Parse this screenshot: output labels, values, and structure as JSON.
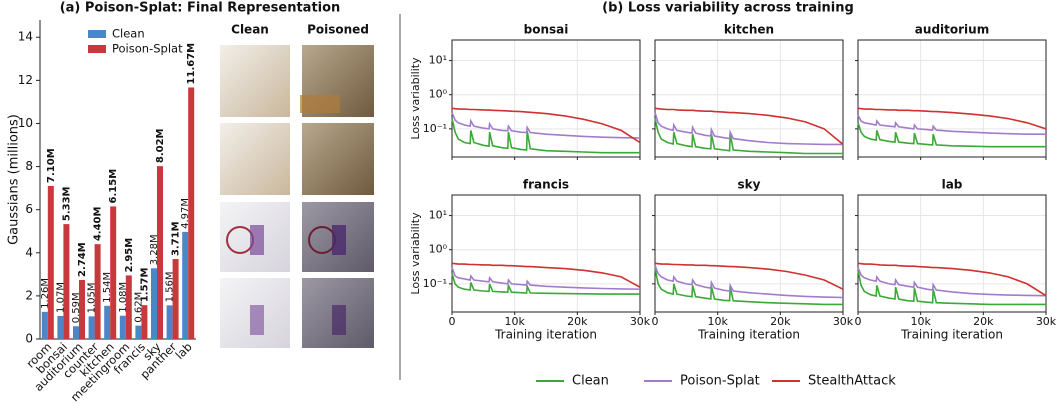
{
  "chart_data": [
    {
      "type": "bar",
      "title": "(a) Poison-Splat: Final Representation",
      "y_label": "Gaussians (millions)",
      "categories": [
        "room",
        "bonsai",
        "auditorium",
        "counter",
        "kitchen",
        "meetingroom",
        "francis",
        "sky",
        "panther",
        "lab"
      ],
      "series": [
        {
          "name": "Clean",
          "color": "#4a86c8",
          "values": [
            1.26,
            1.07,
            0.59,
            1.05,
            1.54,
            1.08,
            0.62,
            3.28,
            1.56,
            4.97
          ],
          "value_labels": [
            "1.26M",
            "1.07M",
            "0.59M",
            "1.05M",
            "1.54M",
            "1.08M",
            "0.62M",
            "3.28M",
            "1.56M",
            "4.97M"
          ]
        },
        {
          "name": "Poison-Splat",
          "color": "#c8383c",
          "values": [
            7.1,
            5.33,
            2.74,
            4.4,
            6.15,
            2.95,
            1.57,
            8.02,
            3.71,
            11.67
          ],
          "value_labels": [
            "7.10M",
            "5.33M",
            "2.74M",
            "4.40M",
            "6.15M",
            "2.95M",
            "1.57M",
            "8.02M",
            "3.71M",
            "11.67M"
          ]
        }
      ],
      "ylim": [
        0,
        14.8
      ],
      "yticks": [
        0,
        2,
        4,
        6,
        8,
        10,
        12,
        14
      ],
      "legend": "upper center"
    },
    {
      "type": "line",
      "title": "(b) Loss variability across training",
      "x_label": "Training iteration",
      "y_label": "Loss variability",
      "log_y": true,
      "grid": true,
      "xlim": [
        0,
        30000
      ],
      "ylim": [
        0.015,
        40
      ],
      "xticks": [
        0,
        {
          "value": 10000,
          "label": "10k"
        },
        {
          "value": 20000,
          "label": "20k"
        },
        {
          "value": 30000,
          "label": "30k"
        }
      ],
      "yticks": [
        {
          "value": 0.1,
          "label": "10⁻¹"
        },
        {
          "value": 1,
          "label": "10⁰"
        },
        {
          "value": 10,
          "label": "10¹"
        }
      ],
      "panels": [
        {
          "title": "bonsai",
          "x": [
            0,
            500,
            1000,
            2000,
            2900,
            3000,
            3500,
            5000,
            5900,
            6000,
            6500,
            8000,
            8900,
            9000,
            9500,
            11000,
            11900,
            12000,
            12500,
            15000,
            18000,
            21000,
            24000,
            27000,
            30000
          ],
          "series": [
            {
              "name": "Clean",
              "color": "#3aa935",
              "values": [
                0.2,
                0.08,
                0.05,
                0.04,
                0.037,
                0.09,
                0.04,
                0.033,
                0.031,
                0.08,
                0.032,
                0.028,
                0.027,
                0.08,
                0.028,
                0.025,
                0.024,
                0.085,
                0.026,
                0.023,
                0.022,
                0.021,
                0.02,
                0.02,
                0.02
              ]
            },
            {
              "name": "Poison-Splat",
              "color": "#a27ccc",
              "values": [
                0.3,
                0.18,
                0.15,
                0.13,
                0.12,
                0.17,
                0.12,
                0.105,
                0.1,
                0.14,
                0.1,
                0.09,
                0.088,
                0.12,
                0.088,
                0.08,
                0.078,
                0.11,
                0.078,
                0.07,
                0.065,
                0.06,
                0.057,
                0.055,
                0.054
              ]
            },
            {
              "name": "StealthAttack",
              "color": "#d03030",
              "values": [
                0.4,
                0.39,
                0.38,
                0.38,
                0.37,
                0.37,
                0.37,
                0.36,
                0.355,
                0.355,
                0.35,
                0.34,
                0.335,
                0.335,
                0.33,
                0.32,
                0.31,
                0.31,
                0.305,
                0.28,
                0.24,
                0.19,
                0.14,
                0.09,
                0.04
              ]
            }
          ]
        },
        {
          "title": "kitchen",
          "x": [
            0,
            500,
            1000,
            2000,
            2900,
            3000,
            3500,
            5000,
            5900,
            6000,
            6500,
            8000,
            8900,
            9000,
            9500,
            11000,
            11900,
            12000,
            12500,
            15000,
            18000,
            21000,
            24000,
            27000,
            30000
          ],
          "series": [
            {
              "name": "Clean",
              "color": "#3aa935",
              "values": [
                0.2,
                0.08,
                0.05,
                0.04,
                0.036,
                0.08,
                0.037,
                0.032,
                0.03,
                0.07,
                0.03,
                0.027,
                0.026,
                0.07,
                0.026,
                0.024,
                0.023,
                0.07,
                0.024,
                0.022,
                0.021,
                0.02,
                0.019,
                0.019,
                0.019
              ]
            },
            {
              "name": "Poison-Splat",
              "color": "#a27ccc",
              "values": [
                0.3,
                0.15,
                0.12,
                0.1,
                0.09,
                0.13,
                0.09,
                0.08,
                0.075,
                0.11,
                0.075,
                0.065,
                0.062,
                0.095,
                0.062,
                0.055,
                0.052,
                0.08,
                0.052,
                0.045,
                0.04,
                0.037,
                0.036,
                0.035,
                0.035
              ]
            },
            {
              "name": "StealthAttack",
              "color": "#d03030",
              "values": [
                0.4,
                0.39,
                0.38,
                0.37,
                0.37,
                0.37,
                0.36,
                0.35,
                0.35,
                0.35,
                0.34,
                0.33,
                0.33,
                0.33,
                0.32,
                0.31,
                0.3,
                0.3,
                0.3,
                0.28,
                0.25,
                0.21,
                0.16,
                0.1,
                0.035
              ]
            }
          ]
        },
        {
          "title": "auditorium",
          "x": [
            0,
            500,
            1000,
            2000,
            2900,
            3000,
            3500,
            5000,
            5900,
            6000,
            6500,
            8000,
            8900,
            9000,
            9500,
            11000,
            11900,
            12000,
            12500,
            15000,
            18000,
            21000,
            24000,
            27000,
            30000
          ],
          "series": [
            {
              "name": "Clean",
              "color": "#3aa935",
              "values": [
                0.15,
                0.08,
                0.06,
                0.05,
                0.047,
                0.09,
                0.048,
                0.043,
                0.041,
                0.08,
                0.041,
                0.038,
                0.037,
                0.075,
                0.037,
                0.035,
                0.034,
                0.07,
                0.034,
                0.032,
                0.031,
                0.03,
                0.03,
                0.03,
                0.03
              ]
            },
            {
              "name": "Poison-Splat",
              "color": "#a27ccc",
              "values": [
                0.25,
                0.17,
                0.15,
                0.14,
                0.13,
                0.17,
                0.13,
                0.12,
                0.115,
                0.15,
                0.115,
                0.105,
                0.1,
                0.13,
                0.1,
                0.095,
                0.092,
                0.12,
                0.092,
                0.085,
                0.08,
                0.075,
                0.072,
                0.07,
                0.07
              ]
            },
            {
              "name": "StealthAttack",
              "color": "#d03030",
              "values": [
                0.4,
                0.39,
                0.38,
                0.38,
                0.37,
                0.37,
                0.37,
                0.36,
                0.36,
                0.36,
                0.35,
                0.35,
                0.34,
                0.34,
                0.34,
                0.33,
                0.32,
                0.32,
                0.32,
                0.3,
                0.27,
                0.24,
                0.2,
                0.15,
                0.1
              ]
            }
          ]
        },
        {
          "title": "francis",
          "x": [
            0,
            500,
            1000,
            2000,
            2900,
            3000,
            3500,
            5000,
            5900,
            6000,
            6500,
            8000,
            8900,
            9000,
            9500,
            11000,
            11900,
            12000,
            12500,
            15000,
            18000,
            21000,
            24000,
            27000,
            30000
          ],
          "series": [
            {
              "name": "Clean",
              "color": "#3aa935",
              "values": [
                0.2,
                0.1,
                0.08,
                0.07,
                0.066,
                0.11,
                0.066,
                0.062,
                0.06,
                0.1,
                0.06,
                0.058,
                0.057,
                0.09,
                0.057,
                0.055,
                0.054,
                0.085,
                0.054,
                0.053,
                0.052,
                0.051,
                0.05,
                0.05,
                0.05
              ]
            },
            {
              "name": "Poison-Splat",
              "color": "#a27ccc",
              "values": [
                0.3,
                0.17,
                0.15,
                0.14,
                0.13,
                0.17,
                0.13,
                0.12,
                0.115,
                0.15,
                0.115,
                0.105,
                0.1,
                0.13,
                0.1,
                0.095,
                0.092,
                0.12,
                0.092,
                0.085,
                0.08,
                0.076,
                0.073,
                0.071,
                0.07
              ]
            },
            {
              "name": "StealthAttack",
              "color": "#d03030",
              "values": [
                0.4,
                0.39,
                0.38,
                0.38,
                0.37,
                0.37,
                0.37,
                0.36,
                0.36,
                0.36,
                0.35,
                0.35,
                0.34,
                0.34,
                0.34,
                0.33,
                0.32,
                0.32,
                0.32,
                0.3,
                0.28,
                0.25,
                0.21,
                0.16,
                0.08
              ]
            }
          ]
        },
        {
          "title": "sky",
          "x": [
            0,
            500,
            1000,
            2000,
            2900,
            3000,
            3500,
            5000,
            5900,
            6000,
            6500,
            8000,
            8900,
            9000,
            9500,
            11000,
            11900,
            12000,
            12500,
            15000,
            18000,
            21000,
            24000,
            27000,
            30000
          ],
          "series": [
            {
              "name": "Clean",
              "color": "#3aa935",
              "values": [
                0.3,
                0.1,
                0.07,
                0.055,
                0.05,
                0.1,
                0.05,
                0.044,
                0.042,
                0.09,
                0.042,
                0.038,
                0.036,
                0.085,
                0.036,
                0.033,
                0.032,
                0.08,
                0.032,
                0.03,
                0.028,
                0.027,
                0.026,
                0.025,
                0.025
              ]
            },
            {
              "name": "Poison-Splat",
              "color": "#a27ccc",
              "values": [
                0.35,
                0.2,
                0.16,
                0.13,
                0.12,
                0.16,
                0.12,
                0.1,
                0.095,
                0.13,
                0.095,
                0.08,
                0.075,
                0.11,
                0.075,
                0.065,
                0.062,
                0.09,
                0.062,
                0.055,
                0.05,
                0.046,
                0.043,
                0.041,
                0.04
              ]
            },
            {
              "name": "StealthAttack",
              "color": "#d03030",
              "values": [
                0.4,
                0.39,
                0.38,
                0.38,
                0.37,
                0.37,
                0.37,
                0.36,
                0.36,
                0.36,
                0.35,
                0.35,
                0.34,
                0.34,
                0.34,
                0.33,
                0.32,
                0.32,
                0.32,
                0.3,
                0.27,
                0.23,
                0.18,
                0.13,
                0.07
              ]
            }
          ]
        },
        {
          "title": "lab",
          "x": [
            0,
            500,
            1000,
            2000,
            2900,
            3000,
            3500,
            5000,
            5900,
            6000,
            6500,
            8000,
            8900,
            9000,
            9500,
            11000,
            11900,
            12000,
            12500,
            15000,
            18000,
            21000,
            24000,
            27000,
            30000
          ],
          "series": [
            {
              "name": "Clean",
              "color": "#3aa935",
              "values": [
                0.25,
                0.09,
                0.06,
                0.048,
                0.044,
                0.09,
                0.044,
                0.038,
                0.036,
                0.08,
                0.036,
                0.032,
                0.031,
                0.075,
                0.031,
                0.029,
                0.028,
                0.07,
                0.028,
                0.027,
                0.026,
                0.025,
                0.025,
                0.025,
                0.025
              ]
            },
            {
              "name": "Poison-Splat",
              "color": "#a27ccc",
              "values": [
                0.3,
                0.18,
                0.15,
                0.13,
                0.12,
                0.16,
                0.12,
                0.1,
                0.095,
                0.13,
                0.095,
                0.085,
                0.08,
                0.11,
                0.08,
                0.07,
                0.066,
                0.095,
                0.066,
                0.058,
                0.052,
                0.049,
                0.047,
                0.046,
                0.045
              ]
            },
            {
              "name": "StealthAttack",
              "color": "#d03030",
              "values": [
                0.4,
                0.39,
                0.38,
                0.38,
                0.37,
                0.37,
                0.36,
                0.35,
                0.35,
                0.35,
                0.34,
                0.33,
                0.33,
                0.33,
                0.32,
                0.31,
                0.3,
                0.3,
                0.3,
                0.28,
                0.25,
                0.21,
                0.16,
                0.1,
                0.045
              ]
            }
          ]
        }
      ]
    }
  ],
  "image_grid": {
    "headers": [
      "Clean",
      "Poisoned"
    ]
  }
}
